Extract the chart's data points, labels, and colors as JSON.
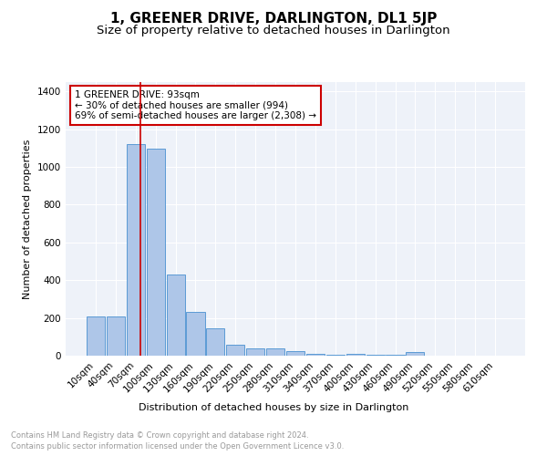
{
  "title": "1, GREENER DRIVE, DARLINGTON, DL1 5JP",
  "subtitle": "Size of property relative to detached houses in Darlington",
  "xlabel": "Distribution of detached houses by size in Darlington",
  "ylabel": "Number of detached properties",
  "footnote1": "Contains HM Land Registry data © Crown copyright and database right 2024.",
  "footnote2": "Contains public sector information licensed under the Open Government Licence v3.0.",
  "bar_labels": [
    "10sqm",
    "40sqm",
    "70sqm",
    "100sqm",
    "130sqm",
    "160sqm",
    "190sqm",
    "220sqm",
    "250sqm",
    "280sqm",
    "310sqm",
    "340sqm",
    "370sqm",
    "400sqm",
    "430sqm",
    "460sqm",
    "490sqm",
    "520sqm",
    "550sqm",
    "580sqm",
    "610sqm"
  ],
  "bar_values": [
    210,
    210,
    1120,
    1095,
    430,
    230,
    145,
    60,
    40,
    40,
    25,
    10,
    5,
    12,
    5,
    5,
    20,
    0,
    0,
    0,
    0
  ],
  "bar_color": "#aec6e8",
  "bar_edgecolor": "#5b9bd5",
  "vline_color": "#cc0000",
  "annotation_text": "1 GREENER DRIVE: 93sqm\n← 30% of detached houses are smaller (994)\n69% of semi-detached houses are larger (2,308) →",
  "annotation_box_edgecolor": "#cc0000",
  "ylim": [
    0,
    1450
  ],
  "yticks": [
    0,
    200,
    400,
    600,
    800,
    1000,
    1200,
    1400
  ],
  "background_color": "#eef2f9",
  "grid_color": "#ffffff",
  "title_fontsize": 11,
  "subtitle_fontsize": 9.5,
  "axis_label_fontsize": 8,
  "tick_fontsize": 7.5,
  "annotation_fontsize": 7.5,
  "footnote_fontsize": 6,
  "footnote_color": "#999999"
}
